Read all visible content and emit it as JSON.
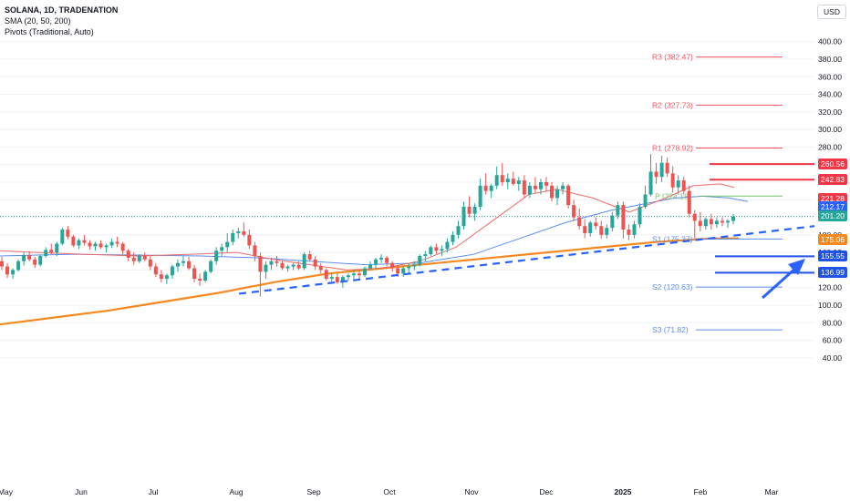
{
  "legend": {
    "title": "SOLANA, 1D, TRADENATION",
    "indicator_sma": "SMA (20, 50, 200)",
    "indicator_pivots": "Pivots (Traditional, Auto)"
  },
  "currency_button": "USD",
  "colors": {
    "up": "#26a69a",
    "down": "#ef5350",
    "sma20": "#f06a6a",
    "sma50": "#5b8def",
    "sma200": "#f5891f",
    "trendline": "#2962ff",
    "resistance": "#f23645",
    "support": "#1e53e5",
    "pivot_res": "#f7525f",
    "pivot_sup": "#5b8def",
    "pivot_p": "#76c26e"
  },
  "chart_data": {
    "type": "candlestick",
    "symbol": "SOLANA",
    "interval": "1D",
    "y_axis": {
      "min": 40,
      "max": 410,
      "ticks": [
        400,
        380,
        360,
        340,
        320,
        300,
        280,
        260,
        240,
        220,
        200,
        180,
        160,
        140,
        120,
        100,
        80,
        60,
        40
      ]
    },
    "x_axis_labels": [
      "May",
      "Jun",
      "Jul",
      "Aug",
      "Sep",
      "Oct",
      "Nov",
      "Dec",
      "2025",
      "Feb",
      "Mar"
    ],
    "last_price": 201.2,
    "ohlc_approx": [
      [
        150,
        155,
        140,
        144
      ],
      [
        144,
        148,
        131,
        135
      ],
      [
        135,
        142,
        130,
        140
      ],
      [
        140,
        152,
        138,
        150
      ],
      [
        150,
        160,
        145,
        157
      ],
      [
        157,
        161,
        150,
        152
      ],
      [
        152,
        155,
        142,
        146
      ],
      [
        146,
        158,
        144,
        156
      ],
      [
        156,
        166,
        154,
        163
      ],
      [
        163,
        170,
        158,
        160
      ],
      [
        160,
        172,
        156,
        170
      ],
      [
        170,
        188,
        168,
        186
      ],
      [
        186,
        190,
        175,
        178
      ],
      [
        178,
        180,
        166,
        168
      ],
      [
        168,
        176,
        164,
        174
      ],
      [
        174,
        180,
        168,
        171
      ],
      [
        171,
        174,
        163,
        167
      ],
      [
        167,
        172,
        162,
        170
      ],
      [
        170,
        174,
        164,
        166
      ],
      [
        166,
        170,
        160,
        168
      ],
      [
        168,
        176,
        165,
        172
      ],
      [
        172,
        178,
        166,
        170
      ],
      [
        170,
        172,
        158,
        162
      ],
      [
        162,
        164,
        150,
        154
      ],
      [
        154,
        160,
        146,
        150
      ],
      [
        150,
        158,
        148,
        156
      ],
      [
        156,
        160,
        150,
        152
      ],
      [
        152,
        156,
        140,
        144
      ],
      [
        144,
        148,
        132,
        135
      ],
      [
        135,
        140,
        126,
        130
      ],
      [
        130,
        136,
        124,
        134
      ],
      [
        134,
        146,
        130,
        144
      ],
      [
        144,
        152,
        138,
        148
      ],
      [
        148,
        156,
        144,
        150
      ],
      [
        150,
        155,
        140,
        142
      ],
      [
        142,
        146,
        126,
        130
      ],
      [
        130,
        136,
        122,
        128
      ],
      [
        128,
        140,
        126,
        138
      ],
      [
        138,
        152,
        136,
        150
      ],
      [
        150,
        166,
        146,
        162
      ],
      [
        162,
        170,
        156,
        166
      ],
      [
        166,
        182,
        160,
        172
      ],
      [
        172,
        186,
        168,
        182
      ],
      [
        182,
        188,
        176,
        184
      ],
      [
        184,
        194,
        178,
        180
      ],
      [
        180,
        186,
        164,
        168
      ],
      [
        168,
        172,
        150,
        156
      ],
      [
        156,
        160,
        110,
        138
      ],
      [
        138,
        150,
        130,
        146
      ],
      [
        146,
        154,
        140,
        150
      ],
      [
        150,
        156,
        144,
        148
      ],
      [
        148,
        150,
        140,
        142
      ],
      [
        142,
        146,
        138,
        144
      ],
      [
        144,
        148,
        140,
        146
      ],
      [
        146,
        150,
        140,
        142
      ],
      [
        142,
        160,
        140,
        158
      ],
      [
        158,
        162,
        150,
        152
      ],
      [
        152,
        156,
        140,
        144
      ],
      [
        144,
        148,
        136,
        140
      ],
      [
        140,
        142,
        128,
        130
      ],
      [
        130,
        136,
        126,
        132
      ],
      [
        132,
        136,
        124,
        126
      ],
      [
        126,
        134,
        120,
        132
      ],
      [
        132,
        136,
        128,
        134
      ],
      [
        134,
        140,
        130,
        136
      ],
      [
        136,
        140,
        130,
        134
      ],
      [
        134,
        144,
        132,
        142
      ],
      [
        142,
        150,
        140,
        146
      ],
      [
        146,
        154,
        142,
        152
      ],
      [
        152,
        158,
        148,
        154
      ],
      [
        154,
        156,
        144,
        148
      ],
      [
        148,
        150,
        138,
        142
      ],
      [
        142,
        146,
        132,
        136
      ],
      [
        136,
        144,
        132,
        142
      ],
      [
        142,
        148,
        136,
        144
      ],
      [
        144,
        150,
        140,
        146
      ],
      [
        146,
        158,
        144,
        156
      ],
      [
        156,
        162,
        150,
        158
      ],
      [
        158,
        168,
        156,
        166
      ],
      [
        166,
        170,
        158,
        162
      ],
      [
        162,
        168,
        156,
        164
      ],
      [
        164,
        176,
        160,
        172
      ],
      [
        172,
        184,
        168,
        180
      ],
      [
        180,
        196,
        176,
        190
      ],
      [
        190,
        218,
        186,
        212
      ],
      [
        212,
        224,
        200,
        204
      ],
      [
        204,
        216,
        196,
        212
      ],
      [
        212,
        244,
        208,
        236
      ],
      [
        236,
        250,
        226,
        230
      ],
      [
        230,
        238,
        222,
        236
      ],
      [
        236,
        258,
        232,
        248
      ],
      [
        248,
        262,
        236,
        240
      ],
      [
        240,
        250,
        232,
        244
      ],
      [
        244,
        252,
        236,
        238
      ],
      [
        238,
        246,
        230,
        242
      ],
      [
        242,
        248,
        222,
        226
      ],
      [
        226,
        240,
        222,
        236
      ],
      [
        236,
        246,
        228,
        232
      ],
      [
        232,
        244,
        226,
        240
      ],
      [
        240,
        246,
        230,
        236
      ],
      [
        236,
        240,
        218,
        222
      ],
      [
        222,
        236,
        214,
        232
      ],
      [
        232,
        240,
        226,
        236
      ],
      [
        236,
        238,
        210,
        214
      ],
      [
        214,
        220,
        196,
        200
      ],
      [
        200,
        210,
        186,
        190
      ],
      [
        190,
        198,
        176,
        182
      ],
      [
        182,
        196,
        178,
        194
      ],
      [
        194,
        200,
        186,
        190
      ],
      [
        190,
        196,
        176,
        180
      ],
      [
        180,
        192,
        176,
        188
      ],
      [
        188,
        206,
        184,
        202
      ],
      [
        202,
        218,
        198,
        214
      ],
      [
        214,
        218,
        176,
        186
      ],
      [
        186,
        192,
        174,
        180
      ],
      [
        180,
        196,
        176,
        192
      ],
      [
        192,
        216,
        188,
        212
      ],
      [
        212,
        236,
        210,
        226
      ],
      [
        226,
        272,
        224,
        252
      ],
      [
        252,
        262,
        238,
        246
      ],
      [
        246,
        270,
        240,
        262
      ],
      [
        262,
        268,
        246,
        250
      ],
      [
        250,
        258,
        228,
        234
      ],
      [
        234,
        248,
        226,
        242
      ],
      [
        242,
        246,
        226,
        230
      ],
      [
        230,
        236,
        200,
        204
      ],
      [
        204,
        208,
        176,
        196
      ],
      [
        196,
        206,
        184,
        190
      ],
      [
        190,
        200,
        186,
        198
      ],
      [
        198,
        204,
        186,
        192
      ],
      [
        192,
        200,
        188,
        196
      ],
      [
        196,
        200,
        190,
        194
      ],
      [
        194,
        198,
        188,
        196
      ],
      [
        196,
        204,
        192,
        201
      ]
    ],
    "sma20_approx": [
      [
        0,
        162
      ],
      [
        40,
        160
      ],
      [
        90,
        158
      ],
      [
        150,
        156
      ],
      [
        210,
        158
      ],
      [
        260,
        160
      ],
      [
        300,
        152
      ],
      [
        340,
        146
      ],
      [
        380,
        140
      ],
      [
        420,
        142
      ],
      [
        460,
        150
      ],
      [
        500,
        166
      ],
      [
        540,
        196
      ],
      [
        580,
        226
      ],
      [
        610,
        232
      ],
      [
        650,
        222
      ],
      [
        690,
        206
      ],
      [
        730,
        222
      ],
      [
        760,
        236
      ],
      [
        790,
        238
      ],
      [
        805,
        234
      ]
    ],
    "sma50_approx": [
      [
        0,
        156
      ],
      [
        80,
        158
      ],
      [
        150,
        157
      ],
      [
        220,
        156
      ],
      [
        280,
        154
      ],
      [
        340,
        150
      ],
      [
        400,
        146
      ],
      [
        460,
        148
      ],
      [
        520,
        158
      ],
      [
        570,
        176
      ],
      [
        620,
        194
      ],
      [
        670,
        208
      ],
      [
        710,
        216
      ],
      [
        740,
        222
      ],
      [
        770,
        224
      ],
      [
        800,
        222
      ],
      [
        820,
        218
      ]
    ],
    "sma200_approx": [
      [
        0,
        78
      ],
      [
        60,
        86
      ],
      [
        120,
        94
      ],
      [
        180,
        104
      ],
      [
        240,
        114
      ],
      [
        300,
        126
      ],
      [
        360,
        136
      ],
      [
        420,
        142
      ],
      [
        480,
        148
      ],
      [
        540,
        154
      ],
      [
        600,
        160
      ],
      [
        660,
        166
      ],
      [
        720,
        172
      ],
      [
        780,
        176
      ],
      [
        810,
        176
      ]
    ],
    "pivots": [
      {
        "label": "R3",
        "value": "(382.47)",
        "price": 382.47
      },
      {
        "label": "R2",
        "value": "(327.73)",
        "price": 327.73
      },
      {
        "label": "R1",
        "value": "(278.92)",
        "price": 278.92
      },
      {
        "label": "P",
        "value": "(224.18)",
        "price": 224.18
      },
      {
        "label": "S1",
        "value": "(175.37)",
        "price": 175.37
      },
      {
        "label": "S2",
        "value": "(120.63)",
        "price": 120.63
      },
      {
        "label": "S3",
        "value": "(71.82)",
        "price": 71.82
      }
    ],
    "horizontal_levels": [
      {
        "price": 260.56,
        "text": "260.56",
        "kind": "resistance"
      },
      {
        "price": 242.83,
        "text": "242.83",
        "kind": "resistance"
      },
      {
        "price": 155.55,
        "text": "155.55",
        "kind": "support"
      },
      {
        "price": 136.99,
        "text": "136.99",
        "kind": "support"
      }
    ],
    "price_tags": [
      {
        "text": "260.56",
        "price": 260.56,
        "color": "#f23645"
      },
      {
        "text": "242.83",
        "price": 242.83,
        "color": "#f23645"
      },
      {
        "text": "221.28",
        "price": 221.28,
        "color": "#f23645"
      },
      {
        "text": "212.17",
        "price": 212.17,
        "color": "#2962ff"
      },
      {
        "text": "201.20",
        "price": 201.2,
        "color": "#26a69a"
      },
      {
        "text": "175.06",
        "price": 175.06,
        "color": "#f5891f"
      },
      {
        "text": "155.55",
        "price": 155.55,
        "color": "#1e53e5"
      },
      {
        "text": "136.99",
        "price": 136.99,
        "color": "#1e53e5"
      }
    ],
    "trendline": {
      "from": [
        "Aug",
        113
      ],
      "to": [
        "Mar",
        190
      ],
      "style": "dashed"
    },
    "arrow": {
      "direction": "up",
      "color": "#2962ff"
    }
  }
}
